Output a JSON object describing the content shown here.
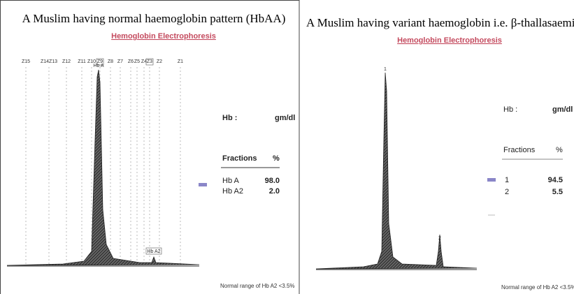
{
  "panels": [
    {
      "title": "A Muslim having normal haemoglobin pattern (HbAA)",
      "subtitle": "Hemoglobin Electrophoresis",
      "zones": [
        "Z15",
        "Z14Z13",
        "Z12",
        "Z11",
        "Z10",
        "Z9",
        "Z8",
        "Z7",
        "Z6",
        "Z5",
        "Z4",
        "Z3",
        "Z2",
        "Z1"
      ],
      "peaks": [
        "Hb A",
        "Hb A2"
      ],
      "hb_label": "Hb :",
      "hb_unit": "gm/dl",
      "table": {
        "header": [
          "Fractions",
          "%"
        ],
        "rows": [
          [
            "Hb A",
            "98.0"
          ],
          [
            "Hb A2",
            "2.0"
          ]
        ]
      },
      "footnote": "Normal range of Hb A2 <3.5%"
    },
    {
      "title": "A Muslim having variant haemoglobin i.e. β-thallasaemia trait (HbAβthal",
      "subtitle": "Hemoglobin Electrophoresis",
      "peaks": [
        "1",
        "2"
      ],
      "hb_label": "Hb :",
      "hb_unit": "gm/dl",
      "table": {
        "header": [
          "Fractions",
          "%"
        ],
        "rows": [
          [
            "1",
            "94.5"
          ],
          [
            "2",
            "5.5"
          ]
        ]
      },
      "footnote": "Normal range of Hb A2 <3.5%"
    }
  ]
}
